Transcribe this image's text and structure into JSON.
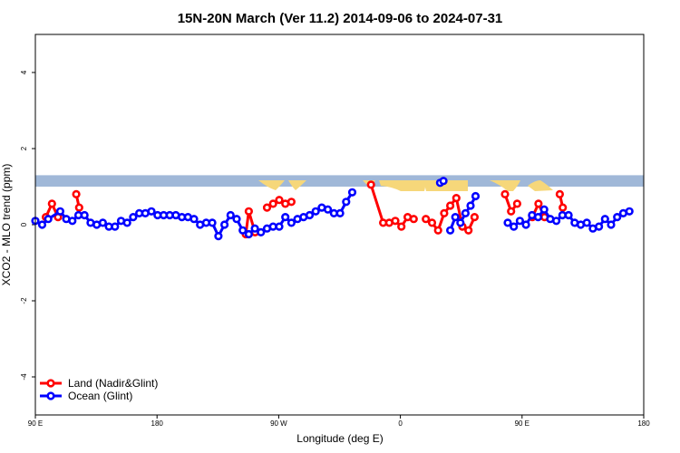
{
  "chart_data": {
    "type": "line",
    "title": "15N-20N March (Ver 11.2)   2014-09-06 to 2024-07-31",
    "xlabel": "Longitude (deg E)",
    "ylabel": "XCO2 - MLO trend (ppm)",
    "xlim": [
      90,
      450
    ],
    "ylim": [
      -5,
      5
    ],
    "x_ticks": [
      {
        "value": 90,
        "label": "90 E"
      },
      {
        "value": 162,
        "label": "180"
      },
      {
        "value": 234,
        "label": "90 W"
      },
      {
        "value": 306,
        "label": "0"
      },
      {
        "value": 378,
        "label": "90 E"
      },
      {
        "value": 450,
        "label": "180"
      }
    ],
    "y_ticks": [
      {
        "value": -4,
        "label": "-4"
      },
      {
        "value": -2,
        "label": "-2"
      },
      {
        "value": 0,
        "label": "0"
      },
      {
        "value": 2,
        "label": "2"
      },
      {
        "value": 4,
        "label": "4"
      }
    ],
    "land_band": {
      "y_bottom": 1.0,
      "y_top": 1.3,
      "ocean_color": "#a0b8d8",
      "land_color": "#f6d77a"
    },
    "legend_position": "bottom-left",
    "series": [
      {
        "name": "Land (Nadir&Glint)",
        "color": "#ff0000",
        "segments": [
          [
            [
              96.2,
              0.2
            ],
            [
              99.8,
              0.55
            ],
            [
              103.4,
              0.2
            ]
          ],
          [
            [
              114.2,
              0.8
            ],
            [
              115.9,
              0.45
            ]
          ],
          [
            [
              214.5,
              -0.25
            ],
            [
              216.3,
              0.35
            ],
            [
              220.0,
              -0.2
            ]
          ],
          [
            [
              227.1,
              0.45
            ],
            [
              230.7,
              0.55
            ],
            [
              234.3,
              0.65
            ],
            [
              237.9,
              0.55
            ],
            [
              241.5,
              0.6
            ]
          ],
          [
            [
              288.6,
              1.05
            ],
            [
              295.8,
              0.05
            ],
            [
              299.4,
              0.05
            ],
            [
              303.0,
              0.1
            ],
            [
              306.6,
              -0.05
            ],
            [
              310.3,
              0.2
            ],
            [
              313.9,
              0.15
            ]
          ],
          [
            [
              321.1,
              0.15
            ],
            [
              324.7,
              0.05
            ],
            [
              328.3,
              -0.15
            ],
            [
              331.9,
              0.3
            ],
            [
              335.5,
              0.5
            ],
            [
              339.1,
              0.7
            ],
            [
              342.7,
              -0.05
            ],
            [
              346.3,
              -0.15
            ],
            [
              349.9,
              0.2
            ]
          ],
          [
            [
              367.9,
              0.8
            ],
            [
              371.5,
              0.35
            ],
            [
              375.1,
              0.55
            ]
          ],
          [
            [
              384.1,
              0.2
            ],
            [
              387.7,
              0.55
            ],
            [
              391.3,
              0.2
            ]
          ],
          [
            [
              400.3,
              0.8
            ],
            [
              402.1,
              0.45
            ]
          ]
        ]
      },
      {
        "name": "Ocean (Glint)",
        "color": "#0000ff",
        "segments": [
          [
            [
              90.0,
              0.1
            ],
            [
              94.0,
              0.0
            ],
            [
              97.6,
              0.15
            ],
            [
              104.7,
              0.35
            ],
            [
              108.3,
              0.15
            ],
            [
              111.9,
              0.1
            ],
            [
              115.5,
              0.25
            ],
            [
              119.1,
              0.25
            ],
            [
              122.7,
              0.05
            ],
            [
              126.3,
              0.0
            ],
            [
              129.9,
              0.05
            ],
            [
              133.5,
              -0.05
            ],
            [
              137.1,
              -0.05
            ],
            [
              140.7,
              0.1
            ],
            [
              144.3,
              0.05
            ],
            [
              147.9,
              0.2
            ],
            [
              151.5,
              0.3
            ],
            [
              155.1,
              0.3
            ],
            [
              158.7,
              0.35
            ],
            [
              162.3,
              0.25
            ],
            [
              165.9,
              0.25
            ],
            [
              169.5,
              0.25
            ],
            [
              173.1,
              0.25
            ],
            [
              176.7,
              0.2
            ],
            [
              180.3,
              0.2
            ],
            [
              183.9,
              0.15
            ],
            [
              187.5,
              0.0
            ],
            [
              191.1,
              0.05
            ],
            [
              194.7,
              0.05
            ],
            [
              198.3,
              -0.3
            ],
            [
              201.9,
              0.0
            ],
            [
              205.5,
              0.25
            ],
            [
              209.1,
              0.15
            ],
            [
              212.7,
              -0.15
            ],
            [
              216.3,
              -0.25
            ],
            [
              219.9,
              -0.1
            ],
            [
              223.5,
              -0.2
            ],
            [
              227.1,
              -0.1
            ],
            [
              230.7,
              -0.05
            ],
            [
              234.3,
              -0.05
            ],
            [
              237.9,
              0.2
            ],
            [
              241.5,
              0.05
            ],
            [
              245.1,
              0.15
            ],
            [
              248.7,
              0.2
            ],
            [
              252.3,
              0.25
            ],
            [
              255.9,
              0.35
            ],
            [
              259.5,
              0.45
            ],
            [
              263.1,
              0.4
            ],
            [
              266.7,
              0.3
            ],
            [
              270.3,
              0.3
            ],
            [
              273.9,
              0.6
            ],
            [
              277.5,
              0.85
            ]
          ],
          [
            [
              329.5,
              1.1
            ],
            [
              331.5,
              1.15
            ]
          ],
          [
            [
              335.5,
              -0.15
            ],
            [
              338.5,
              0.2
            ],
            [
              341.5,
              0.05
            ],
            [
              344.5,
              0.3
            ],
            [
              347.5,
              0.5
            ],
            [
              350.5,
              0.75
            ]
          ],
          [
            [
              369.5,
              0.05
            ],
            [
              373.1,
              -0.05
            ],
            [
              376.7,
              0.1
            ],
            [
              380.3,
              0.0
            ],
            [
              383.9,
              0.25
            ],
            [
              387.5,
              0.2
            ],
            [
              391.1,
              0.4
            ],
            [
              394.7,
              0.15
            ],
            [
              398.3,
              0.1
            ],
            [
              401.9,
              0.25
            ],
            [
              405.5,
              0.25
            ],
            [
              409.1,
              0.05
            ],
            [
              412.7,
              0.0
            ],
            [
              416.3,
              0.05
            ],
            [
              419.9,
              -0.1
            ],
            [
              423.5,
              -0.05
            ],
            [
              427.1,
              0.15
            ],
            [
              430.7,
              0.0
            ],
            [
              434.3,
              0.2
            ],
            [
              437.9,
              0.3
            ],
            [
              441.5,
              0.35
            ]
          ]
        ]
      }
    ]
  }
}
